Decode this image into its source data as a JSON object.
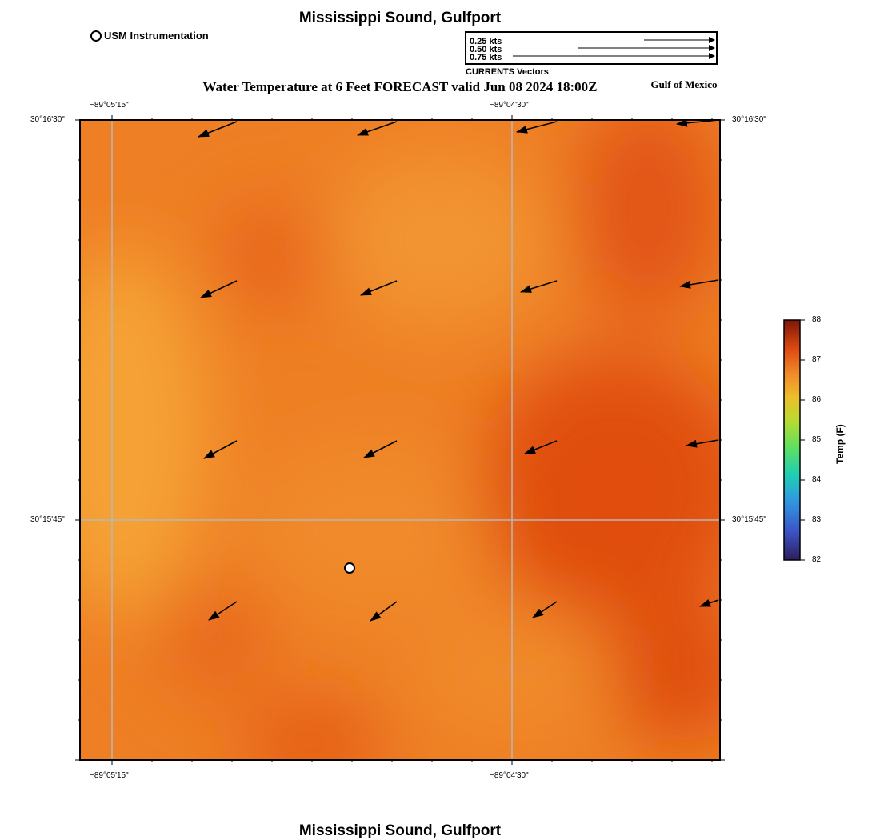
{
  "header": {
    "title": "Mississippi Sound, Gulfport",
    "subtitle": "Water Temperature at 6 Feet FORECAST valid Jun 08 2024 18:00Z",
    "region": "Gulf of Mexico"
  },
  "footer": {
    "title": "Mississippi Sound, Gulfport"
  },
  "station_legend": {
    "label": "USM Instrumentation"
  },
  "vector_legend": {
    "rows": [
      {
        "label": "0.25 kts",
        "speed": 0.25
      },
      {
        "label": "0.50 kts",
        "speed": 0.5
      },
      {
        "label": "0.75 kts",
        "speed": 0.75
      }
    ],
    "caption": "CURRENTS Vectors"
  },
  "axes": {
    "lon_ticks": [
      "−89°05'15\"",
      "−89°04'30\""
    ],
    "lat_ticks": [
      "30°16'30\"",
      "30°15'45\""
    ]
  },
  "colorbar": {
    "title": "Temp (F)",
    "min": 82,
    "max": 88,
    "ticks": [
      "82",
      "83",
      "84",
      "85",
      "86",
      "87",
      "88"
    ]
  },
  "colors": {
    "field_warm": "#f5a236",
    "field_mid": "#ee7a22",
    "field_hot": "#e04e0e"
  }
}
